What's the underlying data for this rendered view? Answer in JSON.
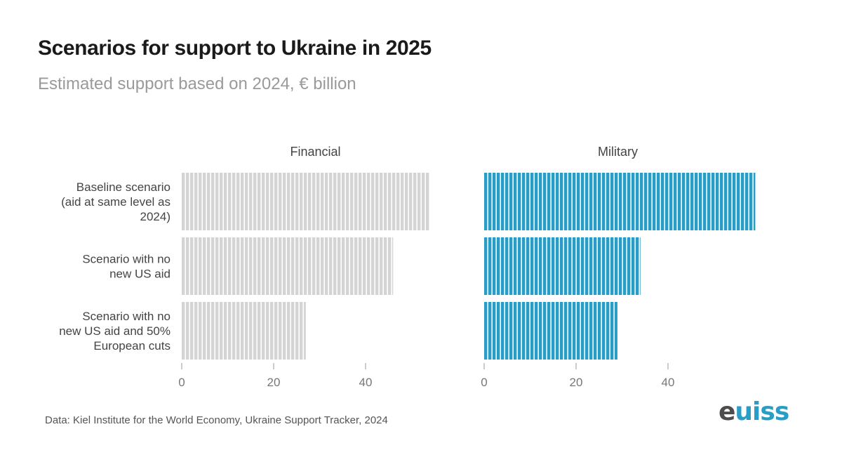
{
  "header": {
    "title": "Scenarios for support to Ukraine in 2025",
    "subtitle": "Estimated support based on 2024, € billion"
  },
  "chart_data": {
    "type": "bar",
    "orientation": "horizontal",
    "title": "Scenarios for support to Ukraine in 2025",
    "subtitle": "Estimated support based on 2024, € billion",
    "categories": [
      [
        "Baseline scenario",
        "(aid at same level as",
        "2024)"
      ],
      [
        "Scenario with no",
        "new US aid"
      ],
      [
        "Scenario with no",
        "new US aid and 50%",
        "European cuts"
      ]
    ],
    "series": [
      {
        "name": "Financial",
        "color": "#d4d4d4",
        "values": [
          54,
          46,
          27
        ]
      },
      {
        "name": "Military",
        "color": "#2a9dc6",
        "values": [
          59,
          34,
          29
        ]
      }
    ],
    "xticks": [
      0,
      20,
      40
    ],
    "xlim": [
      0,
      59
    ],
    "grid": false
  },
  "footer": {
    "source": "Data: Kiel Institute for the World Economy, Ukraine Support Tracker, 2024",
    "logo": {
      "text_main": "e",
      "text_accent": "uiss",
      "brand_color": "#2a9dc6"
    }
  }
}
